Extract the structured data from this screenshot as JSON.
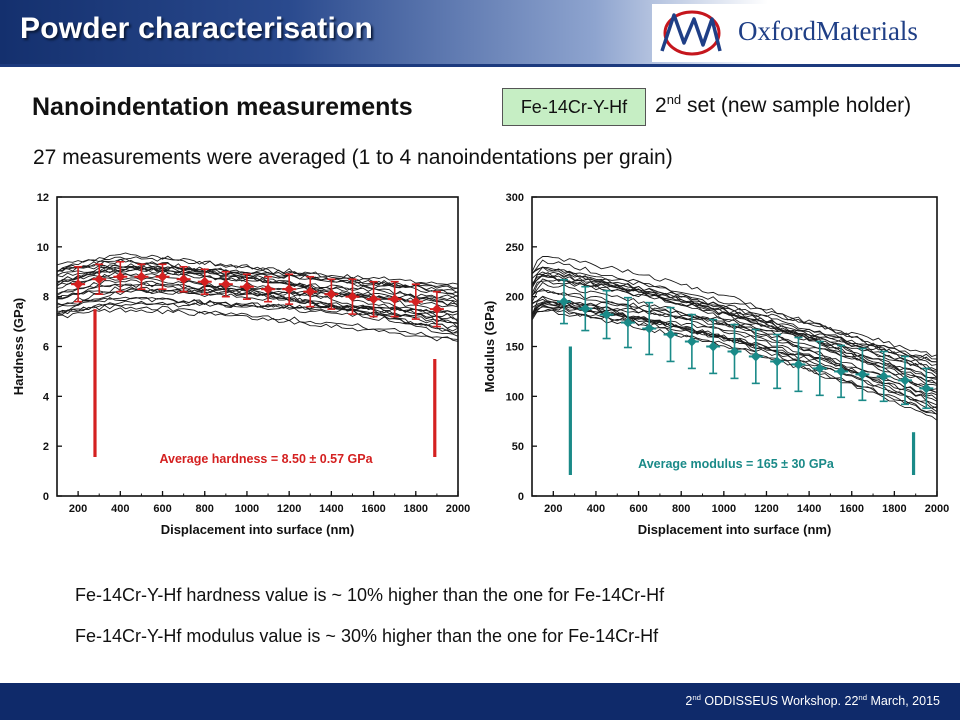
{
  "header": {
    "title": "Powder characterisation",
    "logo_text": "OxfordMaterials"
  },
  "subtitle": "Nanoindentation measurements",
  "sample_tag": "Fe-14Cr-Y-Hf",
  "set_label": {
    "ordinal": "2",
    "ordinal_suffix": "nd",
    "text": " set (new sample holder)"
  },
  "averaging_note": "27 measurements were averaged (1 to 4 nanoindentations per grain)",
  "conclusions": [
    "Fe-14Cr-Y-Hf hardness value is ~ 10% higher than the one for Fe-14Cr-Hf",
    "Fe-14Cr-Y-Hf modulus value is ~ 30% higher than the one for Fe-14Cr-Hf"
  ],
  "footer": {
    "n1": "2",
    "s1": "nd",
    "t1": " ODDISSEUS Workshop. 22",
    "s2": "nd",
    "t2": " March, 2015"
  },
  "colors": {
    "hardness_accent": "#d42020",
    "modulus_accent": "#1a8a88",
    "header_blue": "#14306e"
  },
  "chart_data": [
    {
      "type": "scatter",
      "xlabel": "Displacement into surface (nm)",
      "ylabel": "Hardness (GPa)",
      "xlim": [
        100,
        2000
      ],
      "ylim": [
        0,
        12
      ],
      "xticks": [
        200,
        400,
        600,
        800,
        1000,
        1200,
        1400,
        1600,
        1800,
        2000
      ],
      "yticks": [
        0,
        2,
        4,
        6,
        8,
        10,
        12
      ],
      "annotation": "Average hardness = 8.50 ± 0.57 GPa",
      "range_markers_x": [
        280,
        1890
      ],
      "curves": {
        "count": 27,
        "start_range": [
          6.8,
          9.3
        ],
        "peak_x": 460,
        "end_range": [
          6.2,
          8.5
        ]
      },
      "averages": {
        "x": [
          200,
          300,
          400,
          500,
          600,
          700,
          800,
          900,
          1000,
          1100,
          1200,
          1300,
          1400,
          1500,
          1600,
          1700,
          1800,
          1900
        ],
        "y": [
          8.5,
          8.7,
          8.8,
          8.8,
          8.8,
          8.7,
          8.6,
          8.5,
          8.4,
          8.3,
          8.3,
          8.2,
          8.1,
          8.0,
          7.9,
          7.9,
          7.8,
          7.5
        ],
        "err": [
          0.7,
          0.6,
          0.6,
          0.5,
          0.5,
          0.5,
          0.5,
          0.5,
          0.5,
          0.5,
          0.6,
          0.6,
          0.6,
          0.7,
          0.7,
          0.7,
          0.7,
          0.7
        ]
      }
    },
    {
      "type": "scatter",
      "xlabel": "Displacement into surface (nm)",
      "ylabel": "Modulus (GPa)",
      "xlim": [
        100,
        2000
      ],
      "ylim": [
        0,
        300
      ],
      "xticks": [
        200,
        400,
        600,
        800,
        1000,
        1200,
        1400,
        1600,
        1800,
        2000
      ],
      "yticks": [
        0,
        50,
        100,
        150,
        200,
        250,
        300
      ],
      "annotation": "Average modulus = 165 ± 30 GPa",
      "range_markers_x": [
        280,
        1890
      ],
      "curves": {
        "count": 27,
        "start_range": [
          168,
          225
        ],
        "peak_x": 150,
        "end_range": [
          78,
          140
        ]
      },
      "averages": {
        "x": [
          250,
          350,
          450,
          550,
          650,
          750,
          850,
          950,
          1050,
          1150,
          1250,
          1350,
          1450,
          1550,
          1650,
          1750,
          1850,
          1950
        ],
        "y": [
          195,
          188,
          182,
          174,
          168,
          162,
          155,
          150,
          145,
          140,
          135,
          132,
          128,
          125,
          122,
          120,
          116,
          108
        ],
        "err": [
          22,
          22,
          24,
          25,
          26,
          27,
          27,
          27,
          27,
          27,
          27,
          27,
          27,
          26,
          26,
          25,
          24,
          20
        ]
      }
    }
  ]
}
